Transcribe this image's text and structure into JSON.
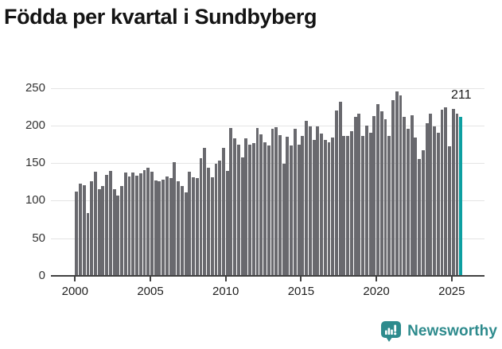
{
  "title": "Födda per kvartal i Sundbyberg",
  "branding": {
    "name": "Newsworthy",
    "icon": "speech-bubble-bar-chart-exclamation-icon"
  },
  "colors": {
    "bar": "#69696e",
    "highlight": "#0d9fa1",
    "grid": "#e4e4e4",
    "axis": "#414141",
    "title_text": "#141414",
    "tick_text": "#333333",
    "logo": "#2e8b8d"
  },
  "chart_data": {
    "type": "bar",
    "title": "Födda per kvartal i Sundbyberg",
    "x_start": "2000 Q1",
    "x_end": "2025 Q3",
    "ylim": [
      0,
      250
    ],
    "yticks": [
      0,
      50,
      100,
      150,
      200,
      250
    ],
    "xticks": [
      2000,
      2005,
      2010,
      2015,
      2020,
      2025
    ],
    "grid": "horizontal",
    "legend": "none",
    "years": [
      {
        "year": 2000,
        "values": [
          112,
          123,
          121,
          84
        ]
      },
      {
        "year": 2001,
        "values": [
          126,
          139,
          115,
          119
        ]
      },
      {
        "year": 2002,
        "values": [
          134,
          140,
          115,
          107
        ]
      },
      {
        "year": 2003,
        "values": [
          119,
          138,
          132,
          138
        ]
      },
      {
        "year": 2004,
        "values": [
          133,
          136,
          141,
          144
        ]
      },
      {
        "year": 2005,
        "values": [
          139,
          127,
          126,
          128
        ]
      },
      {
        "year": 2006,
        "values": [
          132,
          130,
          151,
          126
        ]
      },
      {
        "year": 2007,
        "values": [
          120,
          111,
          139,
          131
        ]
      },
      {
        "year": 2008,
        "values": [
          130,
          156,
          170,
          144
        ]
      },
      {
        "year": 2009,
        "values": [
          131,
          149,
          153,
          170
        ]
      },
      {
        "year": 2010,
        "values": [
          140,
          197,
          183,
          175
        ]
      },
      {
        "year": 2011,
        "values": [
          158,
          183,
          174,
          177
        ]
      },
      {
        "year": 2012,
        "values": [
          197,
          188,
          178,
          173
        ]
      },
      {
        "year": 2013,
        "values": [
          196,
          198,
          187,
          149
        ]
      },
      {
        "year": 2014,
        "values": [
          185,
          173,
          196,
          175
        ]
      },
      {
        "year": 2015,
        "values": [
          186,
          206,
          199,
          181
        ]
      },
      {
        "year": 2016,
        "values": [
          199,
          189,
          181,
          178
        ]
      },
      {
        "year": 2017,
        "values": [
          184,
          220,
          232,
          186
        ]
      },
      {
        "year": 2018,
        "values": [
          186,
          192,
          211,
          216
        ]
      },
      {
        "year": 2019,
        "values": [
          186,
          200,
          190,
          213
        ]
      },
      {
        "year": 2020,
        "values": [
          228,
          219,
          208,
          186
        ]
      },
      {
        "year": 2021,
        "values": [
          234,
          245,
          240,
          211
        ]
      },
      {
        "year": 2022,
        "values": [
          196,
          214,
          184,
          155
        ]
      },
      {
        "year": 2023,
        "values": [
          167,
          203,
          216,
          199
        ]
      },
      {
        "year": 2024,
        "values": [
          190,
          221,
          224,
          172
        ]
      },
      {
        "year": 2025,
        "values": [
          222,
          216,
          211
        ]
      }
    ],
    "highlight": {
      "quarter": "2025 Q3",
      "value": 211,
      "label": "211",
      "position": "last-bar"
    }
  }
}
